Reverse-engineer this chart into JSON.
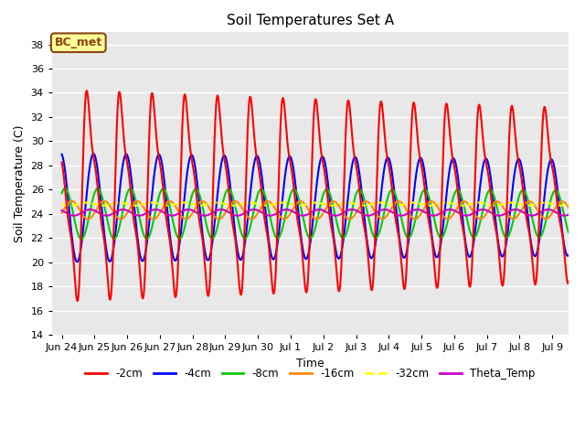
{
  "title": "Soil Temperatures Set A",
  "xlabel": "Time",
  "ylabel": "Soil Temperature (C)",
  "ylim": [
    14,
    39
  ],
  "yticks": [
    14,
    16,
    18,
    20,
    22,
    24,
    26,
    28,
    30,
    32,
    34,
    36,
    38
  ],
  "bg_color": "#e8e8e8",
  "annotation_text": "BC_met",
  "annotation_bg": "#ffff99",
  "annotation_border": "#8B4513",
  "series_colors": {
    "-2cm": "#ff0000",
    "-4cm": "#0000ff",
    "-8cm": "#00cc00",
    "-16cm": "#ff8800",
    "-32cm": "#ffff00",
    "Theta_Temp": "#cc00cc"
  },
  "series_linewidths": {
    "-2cm": 1.5,
    "-4cm": 1.5,
    "-8cm": 1.5,
    "-16cm": 1.5,
    "-32cm": 1.5,
    "Theta_Temp": 1.5
  },
  "legend_dash_styles": {
    "-2cm": "-",
    "-4cm": "-",
    "-8cm": "-",
    "-16cm": "-",
    "-32cm": "--",
    "Theta_Temp": "-"
  },
  "num_days": 15.5,
  "depth_params": {
    "-2cm": {
      "mean": 25.5,
      "amp": 11.0,
      "phase": 0.62,
      "sharpness": 3.0,
      "decay": 0.012
    },
    "-4cm": {
      "mean": 24.5,
      "amp": 4.5,
      "phase": 0.72,
      "sharpness": 1.0,
      "decay": 0.008
    },
    "-8cm": {
      "mean": 24.0,
      "amp": 2.1,
      "phase": 0.85,
      "sharpness": 1.0,
      "decay": 0.005
    },
    "-16cm": {
      "mean": 24.3,
      "amp": 0.75,
      "phase": 1.05,
      "sharpness": 1.0,
      "decay": 0.003
    },
    "-32cm": {
      "mean": 24.8,
      "amp": 0.12,
      "phase": 1.5,
      "sharpness": 1.0,
      "decay": 0.0
    },
    "Theta_Temp": {
      "mean": 24.1,
      "amp": 0.25,
      "phase": 0.62,
      "sharpness": 1.0,
      "decay": 0.0
    }
  },
  "xtick_labels": [
    "Jun 24",
    "Jun 25",
    "Jun 26",
    "Jun 27",
    "Jun 28",
    "Jun 29",
    "Jun 30",
    "Jul 1",
    "Jul 2",
    "Jul 3",
    "Jul 4",
    "Jul 5",
    "Jul 6",
    "Jul 7",
    "Jul 8",
    "Jul 9"
  ],
  "xtick_positions": [
    0,
    1,
    2,
    3,
    4,
    5,
    6,
    7,
    8,
    9,
    10,
    11,
    12,
    13,
    14,
    15
  ]
}
